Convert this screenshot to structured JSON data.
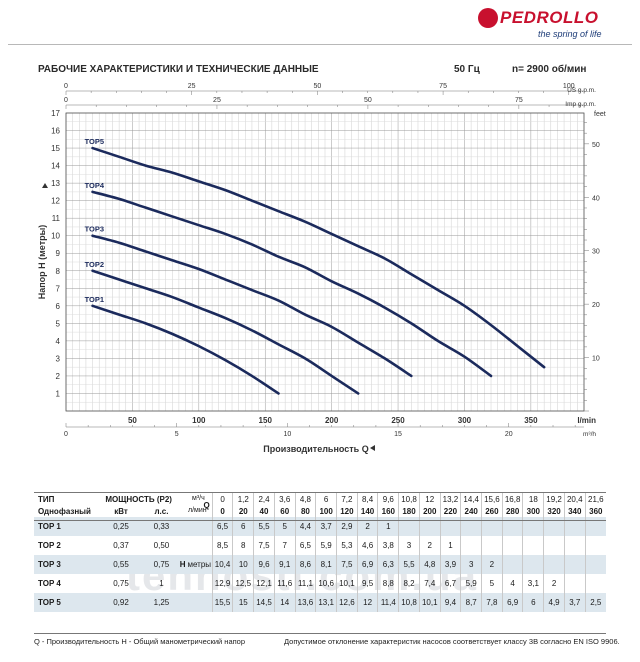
{
  "brand": {
    "name": "PEDROLLO",
    "tagline": "the spring of life",
    "color": "#c8102e"
  },
  "header": {
    "title": "РАБОЧИЕ ХАРАКТЕРИСТИКИ И ТЕХНИЧЕСКИЕ ДАННЫЕ",
    "frequency": "50 Гц",
    "speed": "n= 2900 об/мин"
  },
  "chart_data": {
    "type": "line",
    "xlabel": "Производительность Q",
    "ylabel": "Напор H (метры)",
    "x_unit_main": "l/min",
    "x_unit_m3h": "m³/h",
    "x_unit_us": "US g.p.m.",
    "x_unit_imp": "Imp g.p.m.",
    "y_unit_right": "feet",
    "xlim": [
      0,
      390
    ],
    "ylim": [
      0,
      17
    ],
    "x_ticks": [
      50,
      100,
      150,
      200,
      250,
      300,
      350
    ],
    "y_ticks": [
      1,
      2,
      3,
      4,
      5,
      6,
      7,
      8,
      9,
      10,
      11,
      12,
      13,
      14,
      15,
      16,
      17
    ],
    "m3h_ticks": [
      0,
      5,
      10,
      15,
      20
    ],
    "us_ticks": [
      0,
      25,
      50,
      75,
      100
    ],
    "imp_ticks": [
      0,
      25,
      50,
      75
    ],
    "feet_ticks": [
      10,
      20,
      30,
      40,
      50
    ],
    "grid": true,
    "line_color": "#1b2a5c",
    "series": [
      {
        "name": "TOP1",
        "x": [
          20,
          40,
          60,
          80,
          100,
          120,
          140,
          160
        ],
        "y": [
          6.0,
          5.5,
          5.0,
          4.4,
          3.7,
          2.9,
          2.0,
          1.0
        ]
      },
      {
        "name": "TOP2",
        "x": [
          20,
          40,
          60,
          80,
          100,
          120,
          140,
          160,
          180,
          200,
          220
        ],
        "y": [
          8.0,
          7.5,
          7.0,
          6.5,
          5.9,
          5.3,
          4.6,
          3.8,
          3.0,
          2.0,
          1.0
        ]
      },
      {
        "name": "TOP3",
        "x": [
          20,
          40,
          60,
          80,
          100,
          120,
          140,
          160,
          180,
          200,
          220,
          240,
          260
        ],
        "y": [
          10.0,
          9.6,
          9.1,
          8.6,
          8.1,
          7.5,
          6.9,
          6.3,
          5.5,
          4.8,
          3.9,
          3.0,
          2.0
        ]
      },
      {
        "name": "TOP4",
        "x": [
          20,
          40,
          60,
          80,
          100,
          120,
          140,
          160,
          180,
          200,
          220,
          240,
          260,
          280,
          300,
          320
        ],
        "y": [
          12.5,
          12.1,
          11.6,
          11.1,
          10.6,
          10.1,
          9.5,
          8.8,
          8.2,
          7.4,
          6.7,
          5.9,
          5.0,
          4.0,
          3.1,
          2.0
        ]
      },
      {
        "name": "TOP5",
        "x": [
          20,
          40,
          60,
          80,
          100,
          120,
          140,
          160,
          180,
          200,
          220,
          240,
          260,
          280,
          300,
          320,
          340,
          360
        ],
        "y": [
          15.0,
          14.5,
          14.0,
          13.6,
          13.1,
          12.6,
          12.0,
          11.4,
          10.8,
          10.1,
          9.4,
          8.7,
          7.8,
          6.9,
          6.0,
          4.9,
          3.7,
          2.5
        ]
      }
    ]
  },
  "table": {
    "h_type": "ТИП",
    "h_power": "МОЩНОСТЬ (P2)",
    "h_single": "Однофазный",
    "h_kw": "кВт",
    "h_hp": "л.с.",
    "q_symbol": "Q",
    "unit_m3h": "м³/ч",
    "unit_lmin": "л/мин",
    "h_label": "H",
    "h_unit": "метры",
    "q_m3h": [
      "0",
      "1,2",
      "2,4",
      "3,6",
      "4,8",
      "6",
      "7,2",
      "8,4",
      "9,6",
      "10,8",
      "12",
      "13,2",
      "14,4",
      "15,6",
      "16,8",
      "18",
      "19,2",
      "20,4",
      "21,6"
    ],
    "q_lmin": [
      "0",
      "20",
      "40",
      "60",
      "80",
      "100",
      "120",
      "140",
      "160",
      "180",
      "200",
      "220",
      "240",
      "260",
      "280",
      "300",
      "320",
      "340",
      "360"
    ],
    "rows": [
      {
        "model": "TOP 1",
        "kw": "0,25",
        "hp": "0,33",
        "h": [
          "6,5",
          "6",
          "5,5",
          "5",
          "4,4",
          "3,7",
          "2,9",
          "2",
          "1",
          "",
          "",
          "",
          "",
          "",
          "",
          "",
          "",
          "",
          ""
        ]
      },
      {
        "model": "TOP 2",
        "kw": "0,37",
        "hp": "0,50",
        "h": [
          "8,5",
          "8",
          "7,5",
          "7",
          "6,5",
          "5,9",
          "5,3",
          "4,6",
          "3,8",
          "3",
          "2",
          "1",
          "",
          "",
          "",
          "",
          "",
          "",
          ""
        ]
      },
      {
        "model": "TOP 3",
        "kw": "0,55",
        "hp": "0,75",
        "h": [
          "10,4",
          "10",
          "9,6",
          "9,1",
          "8,6",
          "8,1",
          "7,5",
          "6,9",
          "6,3",
          "5,5",
          "4,8",
          "3,9",
          "3",
          "2",
          "",
          "",
          "",
          "",
          ""
        ]
      },
      {
        "model": "TOP 4",
        "kw": "0,75",
        "hp": "1",
        "h": [
          "12,9",
          "12,5",
          "12,1",
          "11,6",
          "11,1",
          "10,6",
          "10,1",
          "9,5",
          "8,8",
          "8,2",
          "7,4",
          "6,7",
          "5,9",
          "5",
          "4",
          "3,1",
          "2",
          "",
          ""
        ]
      },
      {
        "model": "TOP 5",
        "kw": "0,92",
        "hp": "1,25",
        "h": [
          "15,5",
          "15",
          "14,5",
          "14",
          "13,6",
          "13,1",
          "12,6",
          "12",
          "11,4",
          "10,8",
          "10,1",
          "9,4",
          "8,7",
          "7,8",
          "6,9",
          "6",
          "4,9",
          "3,7",
          "2,5"
        ]
      }
    ]
  },
  "footer": {
    "left": "Q - Производительность   H - Общий манометрический напор",
    "right": "Допустимое отклонение характеристик насосов соответствует классу 3B согласно EN ISO 9906."
  },
  "watermark": "tehnosti.com.ua"
}
